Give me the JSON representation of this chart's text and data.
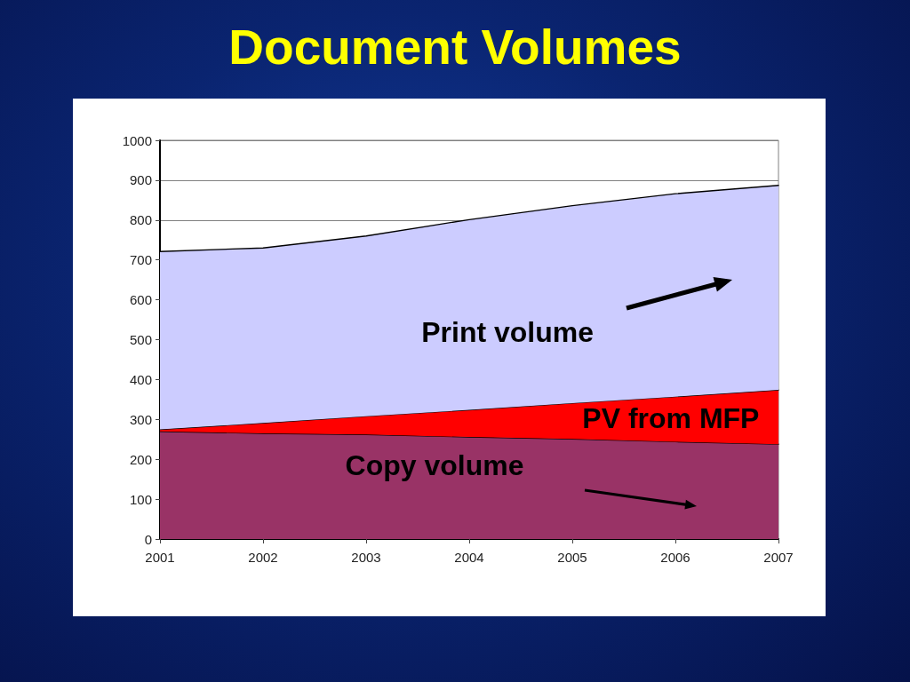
{
  "chart_data": {
    "type": "area",
    "title": "Document Volumes",
    "categories": [
      "2001",
      "2002",
      "2003",
      "2004",
      "2005",
      "2006",
      "2007"
    ],
    "stacked": true,
    "series": [
      {
        "name": "Copy volume",
        "color": "#993366",
        "values": [
          270,
          265,
          262,
          256,
          251,
          244,
          238
        ]
      },
      {
        "name": "PV from MFP",
        "color": "#ff0000",
        "values": [
          5,
          26,
          46,
          68,
          90,
          113,
          136
        ]
      },
      {
        "name": "Print volume",
        "color": "#ccccff",
        "values": [
          446,
          439,
          452,
          477,
          495,
          509,
          513
        ]
      }
    ],
    "ylim": [
      0,
      1000
    ],
    "yticks": [
      0,
      100,
      200,
      300,
      400,
      500,
      600,
      700,
      800,
      900,
      1000
    ],
    "grid": "y",
    "legend": false,
    "marker": "none"
  }
}
